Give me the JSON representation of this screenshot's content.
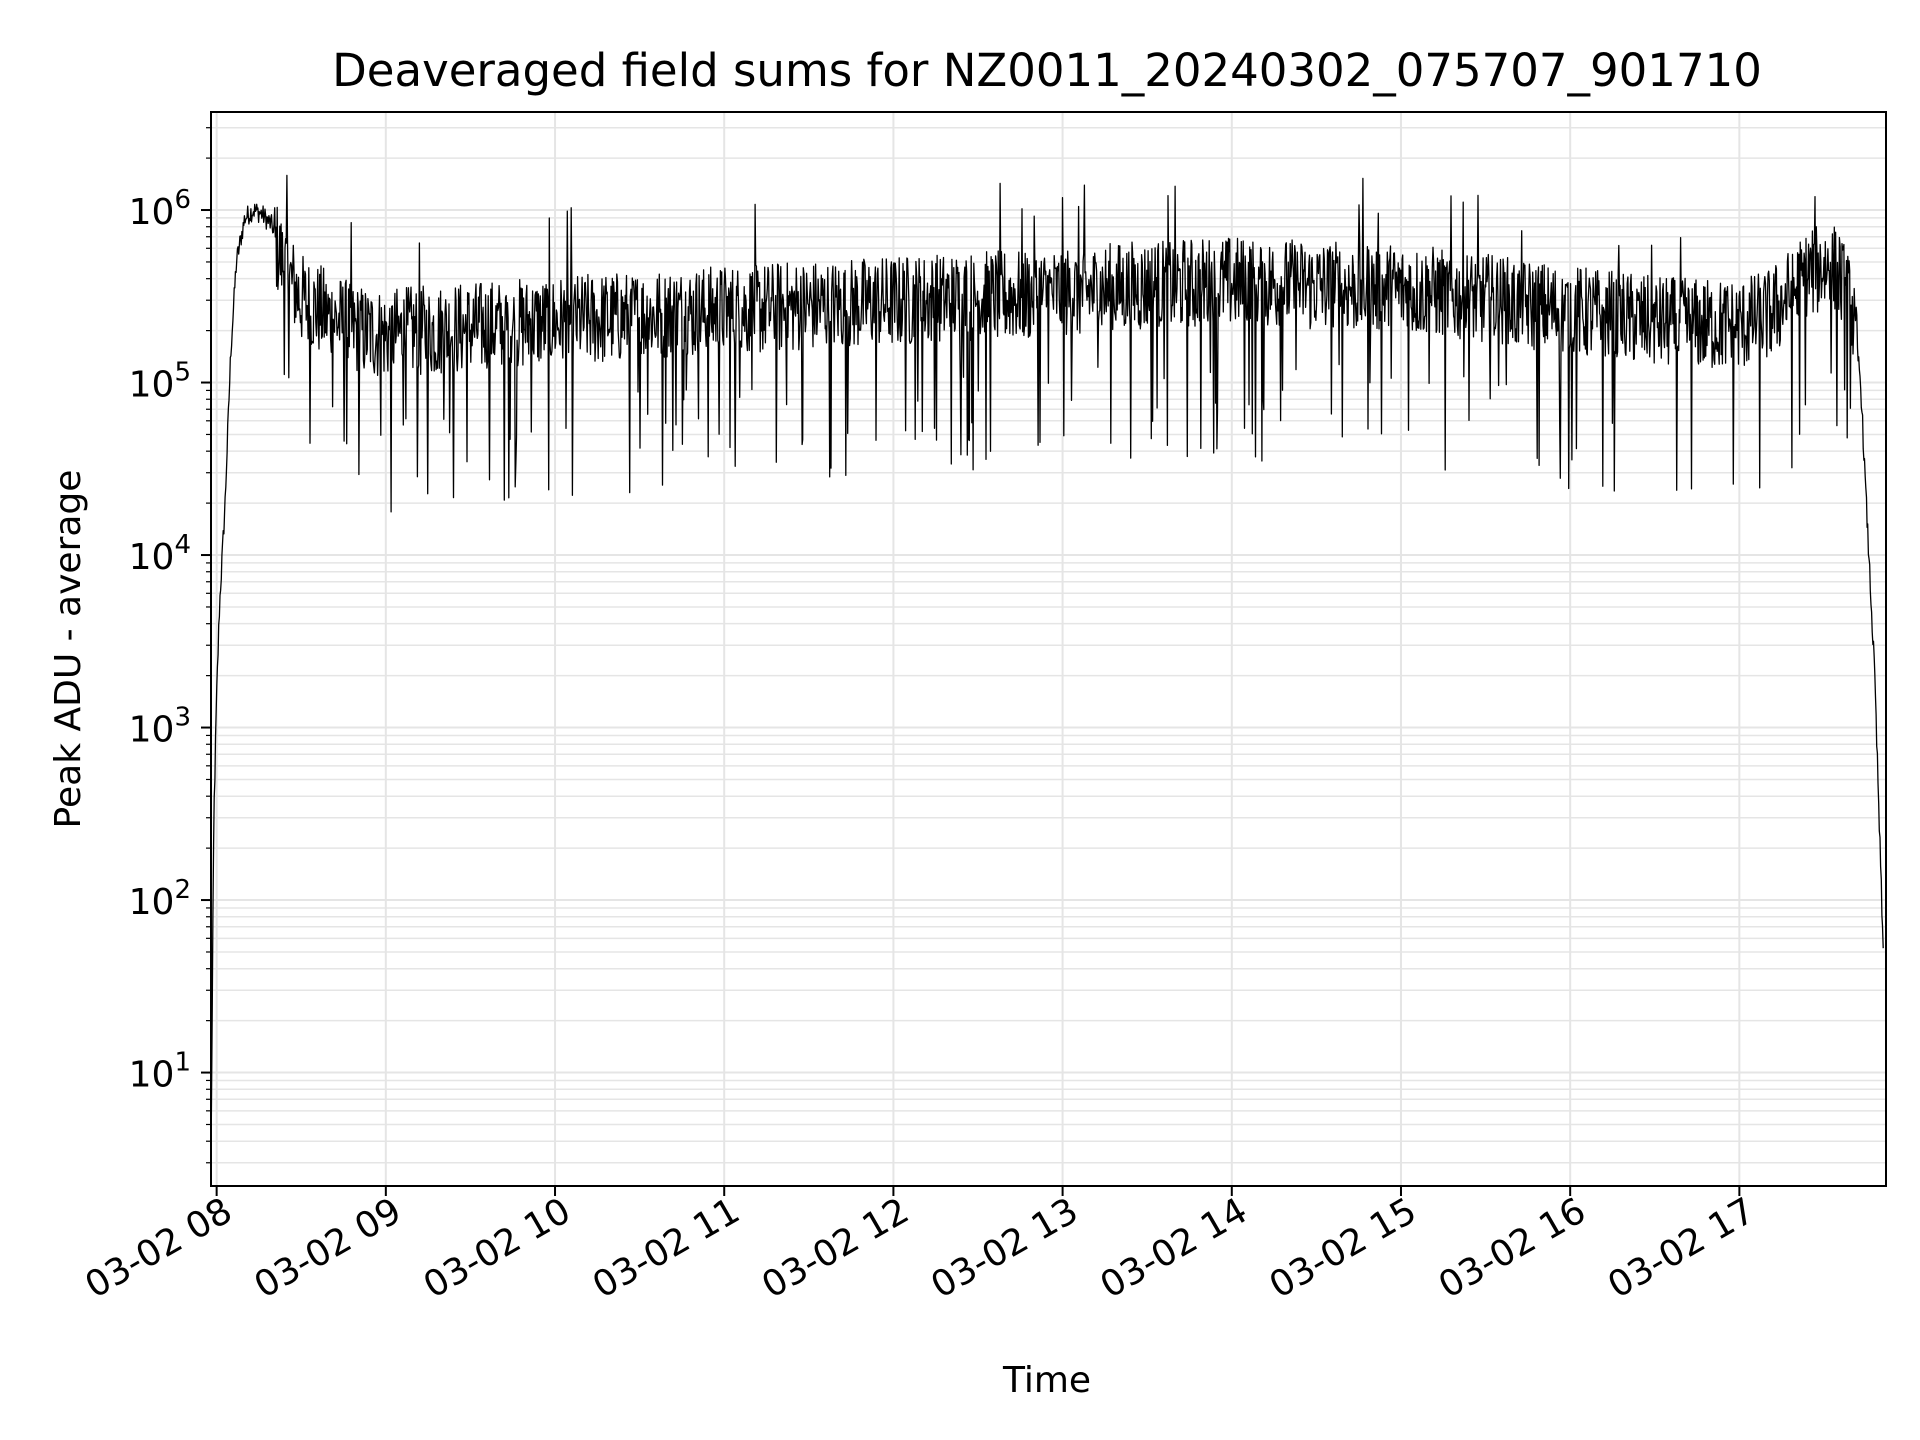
{
  "chart_data": {
    "type": "line",
    "title": "Deaveraged field sums for NZ0011_20240302_075707_901710",
    "xlabel": "Time",
    "ylabel": "Peak ADU - average",
    "yscale": "log",
    "ylim": [
      2.2,
      3700000
    ],
    "xlim": [
      "2024-03-02 07:58",
      "2024-03-02 17:52"
    ],
    "grid": true,
    "legend": "none",
    "line_color": "#000000",
    "grid_color": "#e5e5e5",
    "x_ticks": [
      {
        "value": "2024-03-02 08:00",
        "label": "03-02 08"
      },
      {
        "value": "2024-03-02 09:00",
        "label": "03-02 09"
      },
      {
        "value": "2024-03-02 10:00",
        "label": "03-02 10"
      },
      {
        "value": "2024-03-02 11:00",
        "label": "03-02 11"
      },
      {
        "value": "2024-03-02 12:00",
        "label": "03-02 12"
      },
      {
        "value": "2024-03-02 13:00",
        "label": "03-02 13"
      },
      {
        "value": "2024-03-02 14:00",
        "label": "03-02 14"
      },
      {
        "value": "2024-03-02 15:00",
        "label": "03-02 15"
      },
      {
        "value": "2024-03-02 16:00",
        "label": "03-02 16"
      },
      {
        "value": "2024-03-02 17:00",
        "label": "03-02 17"
      }
    ],
    "y_ticks": [
      {
        "value": 10,
        "base": "10",
        "exp": "1"
      },
      {
        "value": 100,
        "base": "10",
        "exp": "2"
      },
      {
        "value": 1000,
        "base": "10",
        "exp": "3"
      },
      {
        "value": 10000,
        "base": "10",
        "exp": "4"
      },
      {
        "value": 100000,
        "base": "10",
        "exp": "5"
      },
      {
        "value": 1000000,
        "base": "10",
        "exp": "6"
      }
    ],
    "series": [
      {
        "x": [
          "2024-03-02 07:58",
          "2024-03-02 07:59",
          "2024-03-02 08:00",
          "2024-03-02 08:01",
          "2024-03-02 08:03",
          "2024-03-02 08:05",
          "2024-03-02 08:07",
          "2024-03-02 08:10",
          "2024-03-02 08:13",
          "2024-03-02 08:16",
          "2024-03-02 08:20",
          "2024-03-02 08:25",
          "2024-03-02 08:30",
          "2024-03-02 08:40",
          "2024-03-02 08:50",
          "2024-03-02 09:00",
          "2024-03-02 09:15",
          "2024-03-02 09:30",
          "2024-03-02 09:45",
          "2024-03-02 10:00",
          "2024-03-02 10:15",
          "2024-03-02 10:30",
          "2024-03-02 10:45",
          "2024-03-02 11:00",
          "2024-03-02 11:15",
          "2024-03-02 11:30",
          "2024-03-02 11:45",
          "2024-03-02 12:00",
          "2024-03-02 12:15",
          "2024-03-02 12:30",
          "2024-03-02 12:45",
          "2024-03-02 13:00",
          "2024-03-02 13:15",
          "2024-03-02 13:30",
          "2024-03-02 13:45",
          "2024-03-02 14:00",
          "2024-03-02 14:15",
          "2024-03-02 14:30",
          "2024-03-02 14:45",
          "2024-03-02 15:00",
          "2024-03-02 15:15",
          "2024-03-02 15:30",
          "2024-03-02 15:45",
          "2024-03-02 16:00",
          "2024-03-02 16:15",
          "2024-03-02 16:30",
          "2024-03-02 16:45",
          "2024-03-02 17:00",
          "2024-03-02 17:10",
          "2024-03-02 17:20",
          "2024-03-02 17:25",
          "2024-03-02 17:30",
          "2024-03-02 17:35",
          "2024-03-02 17:40",
          "2024-03-02 17:43",
          "2024-03-02 17:45",
          "2024-03-02 17:48",
          "2024-03-02 17:51"
        ],
        "y": [
          3,
          300,
          1500,
          5000,
          20000,
          150000,
          500000,
          900000,
          1000000,
          950000,
          800000,
          500000,
          350000,
          280000,
          230000,
          220000,
          230000,
          240000,
          250000,
          260000,
          270000,
          280000,
          290000,
          300000,
          310000,
          320000,
          330000,
          340000,
          350000,
          360000,
          370000,
          380000,
          400000,
          420000,
          430000,
          440000,
          430000,
          420000,
          410000,
          400000,
          380000,
          350000,
          320000,
          300000,
          280000,
          260000,
          250000,
          250000,
          280000,
          400000,
          500000,
          550000,
          500000,
          300000,
          100000,
          20000,
          2000,
          50
        ]
      }
    ]
  }
}
